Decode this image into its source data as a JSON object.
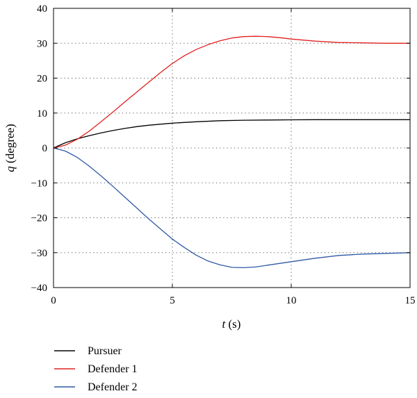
{
  "chart_data": {
    "type": "line",
    "title": "",
    "xlabel": {
      "var": "t",
      "unit": " (s)"
    },
    "ylabel": {
      "var": "q",
      "unit": " (degree)"
    },
    "xlim": [
      0,
      15
    ],
    "ylim": [
      -40,
      40
    ],
    "xticks": [
      0,
      5,
      10,
      15
    ],
    "yticks": [
      -40,
      -30,
      -20,
      -10,
      0,
      10,
      20,
      30,
      40
    ],
    "xtick_labels": [
      "0",
      "5",
      "10",
      "15"
    ],
    "ytick_labels": [
      "−40",
      "−30",
      "−20",
      "−10",
      "0",
      "10",
      "20",
      "30",
      "40"
    ],
    "grid": "dotted",
    "legend_position": "bottom-left",
    "series": [
      {
        "name": "Pursuer",
        "color": "#000000",
        "x": [
          0,
          0.5,
          1,
          1.5,
          2,
          2.5,
          3,
          3.5,
          4,
          4.5,
          5,
          6,
          7,
          8,
          9,
          10,
          11,
          12,
          13,
          14,
          15
        ],
        "y": [
          0,
          1.5,
          2.6,
          3.5,
          4.3,
          5.0,
          5.6,
          6.1,
          6.5,
          6.8,
          7.1,
          7.5,
          7.8,
          7.95,
          8.0,
          8.05,
          8.1,
          8.1,
          8.1,
          8.1,
          8.1
        ]
      },
      {
        "name": "Defender 1",
        "color": "#e02020",
        "x": [
          0,
          0.5,
          1,
          1.5,
          2,
          2.5,
          3,
          3.5,
          4,
          4.5,
          5,
          5.5,
          6,
          6.5,
          7,
          7.5,
          8,
          8.5,
          9,
          9.5,
          10,
          11,
          12,
          13,
          14,
          15
        ],
        "y": [
          0,
          0.8,
          2.5,
          4.8,
          7.5,
          10.3,
          13.2,
          16.0,
          18.8,
          21.6,
          24.2,
          26.4,
          28.2,
          29.6,
          30.7,
          31.5,
          31.9,
          32.0,
          31.9,
          31.6,
          31.2,
          30.6,
          30.2,
          30.1,
          30.0,
          30.0
        ]
      },
      {
        "name": "Defender 2",
        "color": "#2f58a6",
        "x": [
          0,
          0.5,
          1,
          1.5,
          2,
          2.5,
          3,
          3.5,
          4,
          4.5,
          5,
          5.5,
          6,
          6.5,
          7,
          7.5,
          8,
          8.5,
          9,
          9.5,
          10,
          11,
          12,
          13,
          14,
          15
        ],
        "y": [
          0,
          -0.9,
          -2.7,
          -5.2,
          -8.0,
          -11.0,
          -14.1,
          -17.2,
          -20.3,
          -23.2,
          -26.1,
          -28.5,
          -30.7,
          -32.4,
          -33.5,
          -34.2,
          -34.3,
          -34.1,
          -33.6,
          -33.1,
          -32.6,
          -31.6,
          -30.8,
          -30.4,
          -30.2,
          -30.0
        ]
      }
    ]
  }
}
